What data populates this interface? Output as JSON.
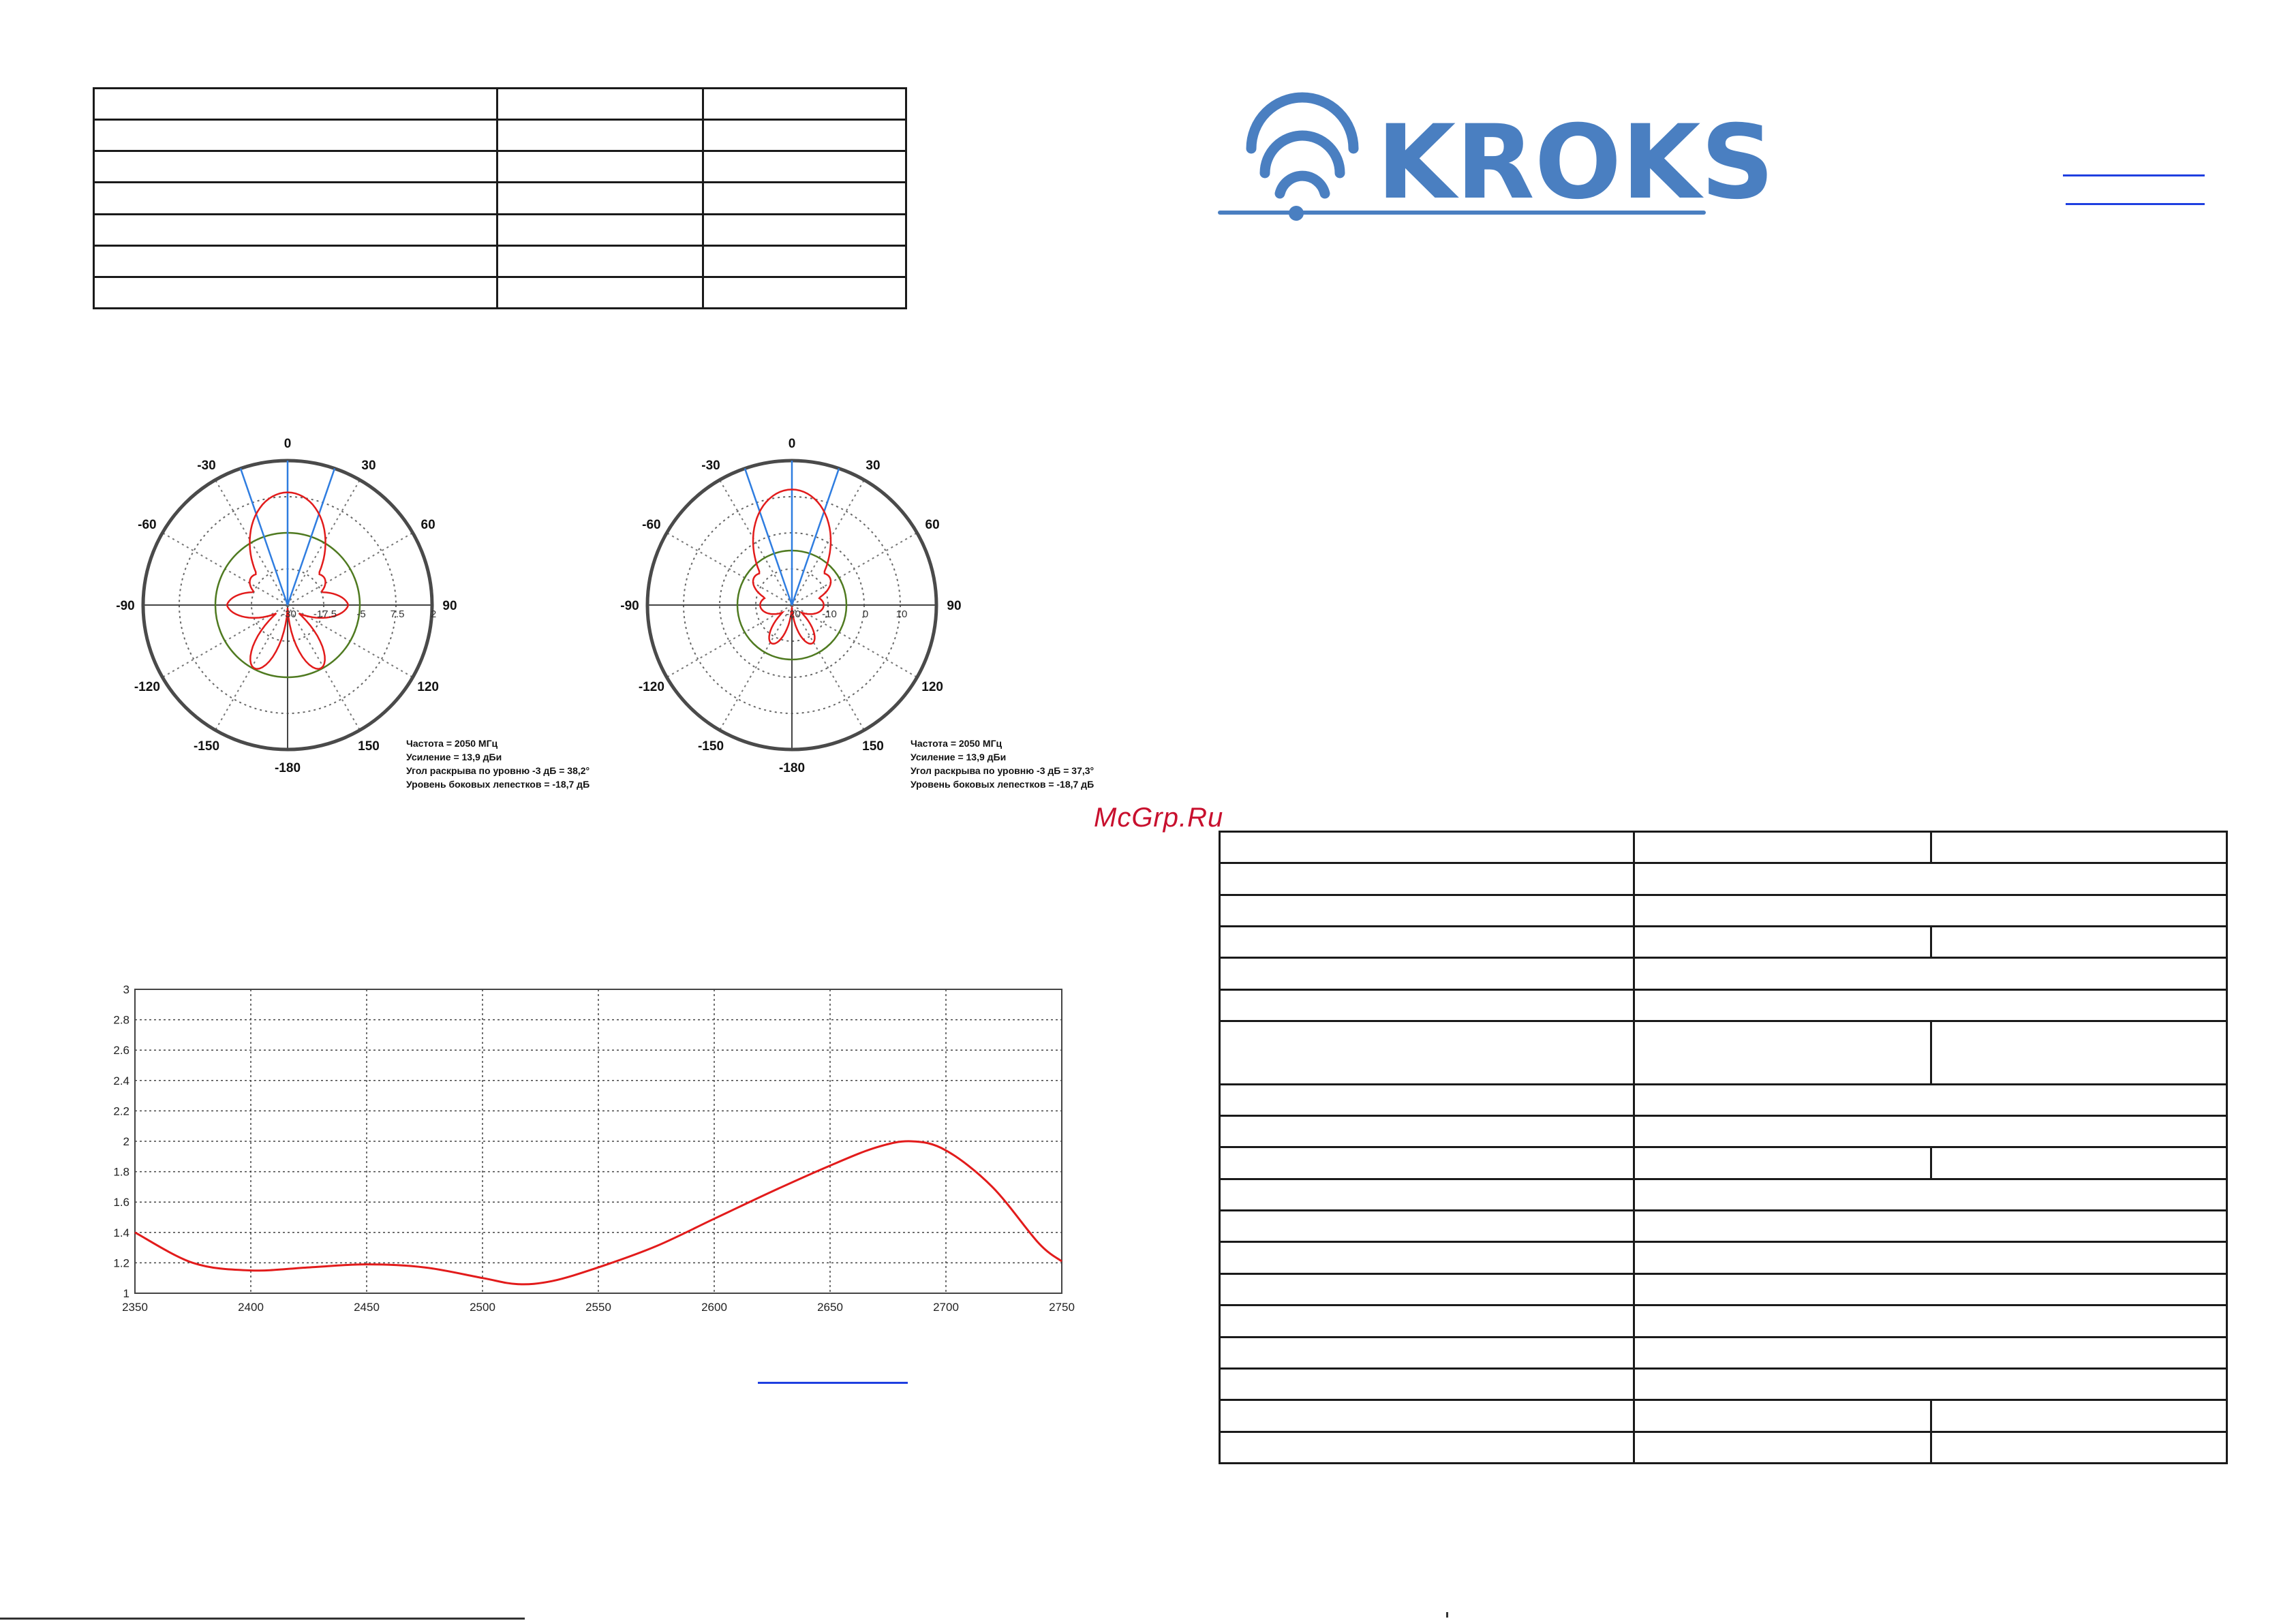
{
  "brand": {
    "name": "KROKS",
    "color": "#4a7fc1",
    "icon": "wifi-signal-icon"
  },
  "watermark": {
    "text": "McGrp.Ru",
    "color": "#c8102e"
  },
  "colors": {
    "pattern_main": "#e21b1b",
    "pattern_reference": "#4f7a20",
    "beam_lines": "#2f7de0",
    "vswr_curve": "#e21b1b",
    "link": "#1f3fe0"
  },
  "top_left_table": {
    "rows": 7,
    "cols": 3
  },
  "specs_table": {
    "rows": [
      {
        "split": true,
        "tall": false
      },
      {
        "split": false,
        "tall": false
      },
      {
        "split": false,
        "tall": false
      },
      {
        "split": true,
        "tall": false
      },
      {
        "split": false,
        "tall": false
      },
      {
        "split": false,
        "tall": false
      },
      {
        "split": true,
        "tall": true
      },
      {
        "split": false,
        "tall": false
      },
      {
        "split": false,
        "tall": false
      },
      {
        "split": true,
        "tall": false
      },
      {
        "split": false,
        "tall": false
      },
      {
        "split": false,
        "tall": false
      },
      {
        "split": false,
        "tall": false
      },
      {
        "split": false,
        "tall": false
      },
      {
        "split": false,
        "tall": false
      },
      {
        "split": false,
        "tall": false
      },
      {
        "split": false,
        "tall": false
      },
      {
        "split": true,
        "tall": false
      },
      {
        "split": true,
        "tall": false
      }
    ]
  },
  "polar_common": {
    "angle_labels": [
      "0",
      "30",
      "60",
      "90",
      "120",
      "150",
      "-180",
      "-150",
      "-120",
      "-90",
      "-60",
      "-30"
    ]
  },
  "polar_left": {
    "ring_labels": [
      "-30",
      "-17.5",
      "-5",
      "7.5",
      "2"
    ],
    "caption": [
      "Частота = 2050 МГц",
      "Усиление = 13,9 дБи",
      "Угол раскрыва по уровню -3 дБ = 38,2°",
      "Уровень боковых лепестков = -18,7 дБ"
    ]
  },
  "polar_right": {
    "ring_labels": [
      "-20",
      "-10",
      "0",
      "10"
    ],
    "caption": [
      "Частота = 2050 МГц",
      "Усиление = 13,9 дБи",
      "Угол раскрыва по уровню -3 дБ = 37,3°",
      "Уровень боковых лепестков = -18,7 дБ"
    ]
  },
  "chart_data": {
    "type": "line",
    "x_ticks": [
      2350,
      2400,
      2450,
      2500,
      2550,
      2600,
      2650,
      2700,
      2750
    ],
    "y_ticks": [
      1,
      1.2,
      1.4,
      1.6,
      1.8,
      2,
      2.2,
      2.4,
      2.6,
      2.8,
      3
    ],
    "xlim": [
      2350,
      2750
    ],
    "ylim": [
      1,
      3
    ],
    "grid": true,
    "series": [
      {
        "x": [
          2350,
          2375,
          2400,
          2425,
          2450,
          2475,
          2500,
          2515,
          2530,
          2550,
          2575,
          2600,
          2625,
          2650,
          2670,
          2685,
          2700,
          2720,
          2740,
          2750
        ],
        "values": [
          1.4,
          1.2,
          1.15,
          1.17,
          1.19,
          1.17,
          1.1,
          1.06,
          1.08,
          1.17,
          1.31,
          1.49,
          1.67,
          1.84,
          1.96,
          2.0,
          1.94,
          1.7,
          1.33,
          1.21
        ]
      }
    ]
  }
}
